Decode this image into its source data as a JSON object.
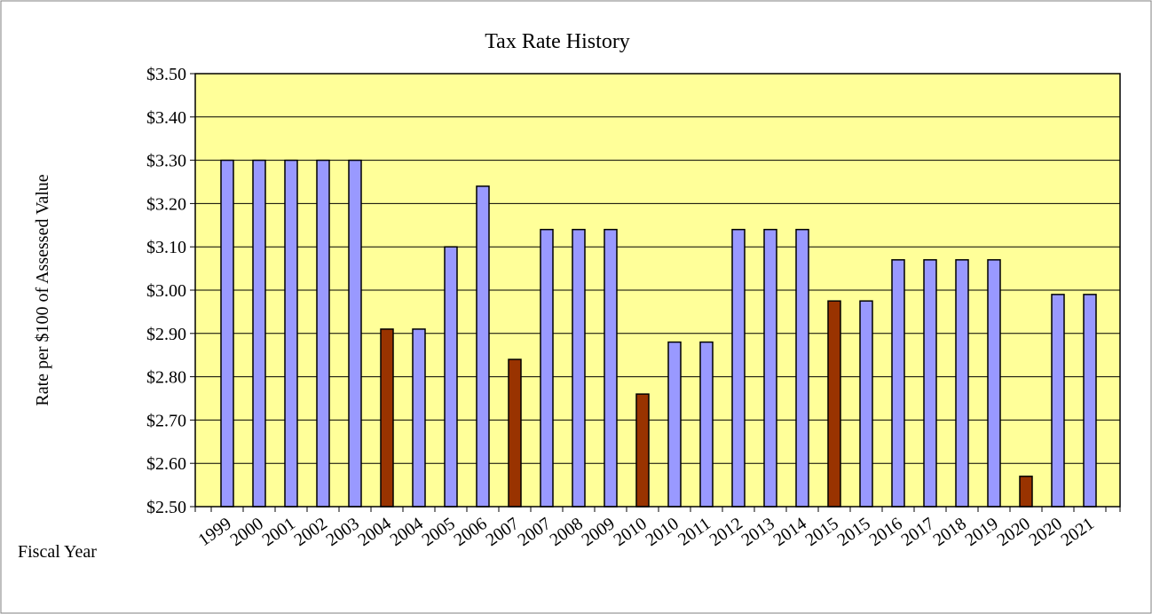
{
  "chart_data": {
    "type": "bar",
    "title": "Tax Rate History",
    "y_label": "Rate per $100 of Assessed Value",
    "x_label": "Fiscal Year",
    "categories": [
      "1999",
      "2000",
      "2001",
      "2002",
      "2003",
      "2004",
      "2004",
      "2005",
      "2006",
      "2007",
      "2007",
      "2008",
      "2009",
      "2010",
      "2010",
      "2011",
      "2012",
      "2013",
      "2014",
      "2015",
      "2015",
      "2016",
      "2017",
      "2018",
      "2019",
      "2020",
      "2020",
      "2021"
    ],
    "values": [
      3.3,
      3.3,
      3.3,
      3.3,
      3.3,
      2.91,
      2.91,
      3.1,
      3.24,
      2.84,
      3.14,
      3.14,
      3.14,
      2.76,
      2.88,
      2.88,
      3.14,
      3.14,
      3.14,
      2.975,
      2.975,
      3.07,
      3.07,
      3.07,
      3.07,
      2.57,
      2.99,
      2.99
    ],
    "colors": [
      "#9999ff",
      "#9999ff",
      "#9999ff",
      "#9999ff",
      "#9999ff",
      "#993300",
      "#9999ff",
      "#9999ff",
      "#9999ff",
      "#993300",
      "#9999ff",
      "#9999ff",
      "#9999ff",
      "#993300",
      "#9999ff",
      "#9999ff",
      "#9999ff",
      "#9999ff",
      "#9999ff",
      "#993300",
      "#9999ff",
      "#9999ff",
      "#9999ff",
      "#9999ff",
      "#9999ff",
      "#993300",
      "#9999ff",
      "#9999ff"
    ],
    "ylim": [
      2.5,
      3.5
    ],
    "yticks": [
      {
        "value": 2.5,
        "label": "$2.50"
      },
      {
        "value": 2.6,
        "label": "$2.60"
      },
      {
        "value": 2.7,
        "label": "$2.70"
      },
      {
        "value": 2.8,
        "label": "$2.80"
      },
      {
        "value": 2.9,
        "label": "$2.90"
      },
      {
        "value": 3.0,
        "label": "$3.00"
      },
      {
        "value": 3.1,
        "label": "$3.10"
      },
      {
        "value": 3.2,
        "label": "$3.20"
      },
      {
        "value": 3.3,
        "label": "$3.30"
      },
      {
        "value": 3.4,
        "label": "$3.40"
      },
      {
        "value": 3.5,
        "label": "$3.50"
      }
    ],
    "grid": true,
    "plot_background": "#ffff99"
  }
}
